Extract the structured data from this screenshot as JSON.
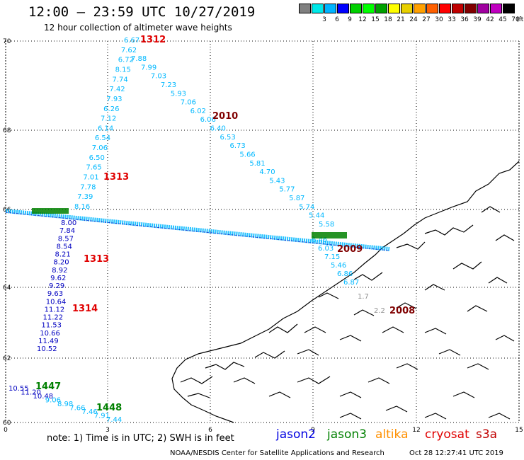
{
  "title": "12:00 – 23:59 UTC 10/27/2019",
  "subtitle": "12 hour collection of altimeter wave heights",
  "legend": {
    "unit": "(ft)",
    "bins": [
      {
        "label": "",
        "color": "#808080"
      },
      {
        "label": "3",
        "color": "#00e8e8"
      },
      {
        "label": "6",
        "color": "#00b4ff"
      },
      {
        "label": "9",
        "color": "#0000ff"
      },
      {
        "label": "12",
        "color": "#00d000"
      },
      {
        "label": "15",
        "color": "#00ff00"
      },
      {
        "label": "18",
        "color": "#00a000"
      },
      {
        "label": "21",
        "color": "#ffff00"
      },
      {
        "label": "24",
        "color": "#e8d000"
      },
      {
        "label": "27",
        "color": "#ffa000"
      },
      {
        "label": "30",
        "color": "#ff6000"
      },
      {
        "label": "33",
        "color": "#ff0000"
      },
      {
        "label": "36",
        "color": "#c00000"
      },
      {
        "label": "39",
        "color": "#800000"
      },
      {
        "label": "42",
        "color": "#a000a0"
      },
      {
        "label": "45",
        "color": "#c000c0"
      },
      {
        "label": "70",
        "color": "#000000"
      }
    ]
  },
  "axes": {
    "lat_labels": [
      "70",
      "68",
      "66",
      "64",
      "62",
      "60"
    ],
    "lon_labels": [
      "0",
      "3",
      "6",
      "9",
      "12",
      "15"
    ]
  },
  "colors": {
    "blue": "#0000c0",
    "cyan": "#00b8ff",
    "green": "#008000",
    "red": "#e00000",
    "darkred": "#800000",
    "gray": "#909090"
  },
  "tracks": [
    {
      "name": "north-cyan",
      "color": "cyan",
      "labels": [
        "6.67",
        "7.62",
        "7.88",
        "6.72",
        "7.99",
        "8.15",
        "7.03",
        "7.74",
        "7.23",
        "7.42",
        "5.93",
        "7.93",
        "7.06",
        "6.26",
        "6.02",
        "7.12",
        "6.06",
        "6.14",
        "6.40",
        "6.54",
        "6.53",
        "7.06",
        "6.73",
        "6.50",
        "5.66",
        "7.65",
        "5.81",
        "7.01",
        "4.70",
        "7.78",
        "5.43",
        "7.39",
        "5.77",
        "8.16",
        "5.87",
        "5.74",
        "5.44",
        "5.58"
      ]
    },
    {
      "name": "south-blue",
      "color": "blue",
      "labels": [
        "8.00",
        "7.84",
        "8.57",
        "8.54",
        "8.21",
        "8.20",
        "8.92",
        "9.62",
        "9.29",
        "9.63",
        "10.64",
        "11.12",
        "11.22",
        "11.53",
        "10.66",
        "11.49",
        "10.52"
      ]
    },
    {
      "name": "coast-cyan",
      "color": "cyan",
      "labels": [
        "6.46",
        "6.03",
        "7.15",
        "5.46",
        "6.86",
        "6.87"
      ]
    },
    {
      "name": "skagerrak",
      "color": "cyan",
      "labels": [
        "10.55",
        "11.20",
        "10.48",
        "9.06",
        "8.98",
        "7.66",
        "7.46",
        "7.91",
        "7.44"
      ]
    }
  ],
  "time_tags": [
    {
      "text": "1312",
      "color": "red"
    },
    {
      "text": "2010",
      "color": "darkred"
    },
    {
      "text": "1313",
      "color": "red"
    },
    {
      "text": "1313",
      "color": "red"
    },
    {
      "text": "1314",
      "color": "red"
    },
    {
      "text": "2009",
      "color": "darkred"
    },
    {
      "text": "2008",
      "color": "darkred"
    },
    {
      "text": "1447",
      "color": "green"
    },
    {
      "text": "1448",
      "color": "green"
    }
  ],
  "gray_values": [
    "1.7",
    "2.2"
  ],
  "note": "note:  1) Time is in UTC;  2) SWH is in feet",
  "satellites": [
    {
      "name": "jason2",
      "color": "#0000e0"
    },
    {
      "name": "jason3",
      "color": "#008000"
    },
    {
      "name": "altika",
      "color": "#ff9000"
    },
    {
      "name": "cryosat",
      "color": "#e00000"
    },
    {
      "name": "s3a",
      "color": "#c00000"
    }
  ],
  "credit": "NOAA/NESDIS Center for Satellite Applications and Research",
  "timestamp": "Oct 28 12:27:41 UTC 2019"
}
